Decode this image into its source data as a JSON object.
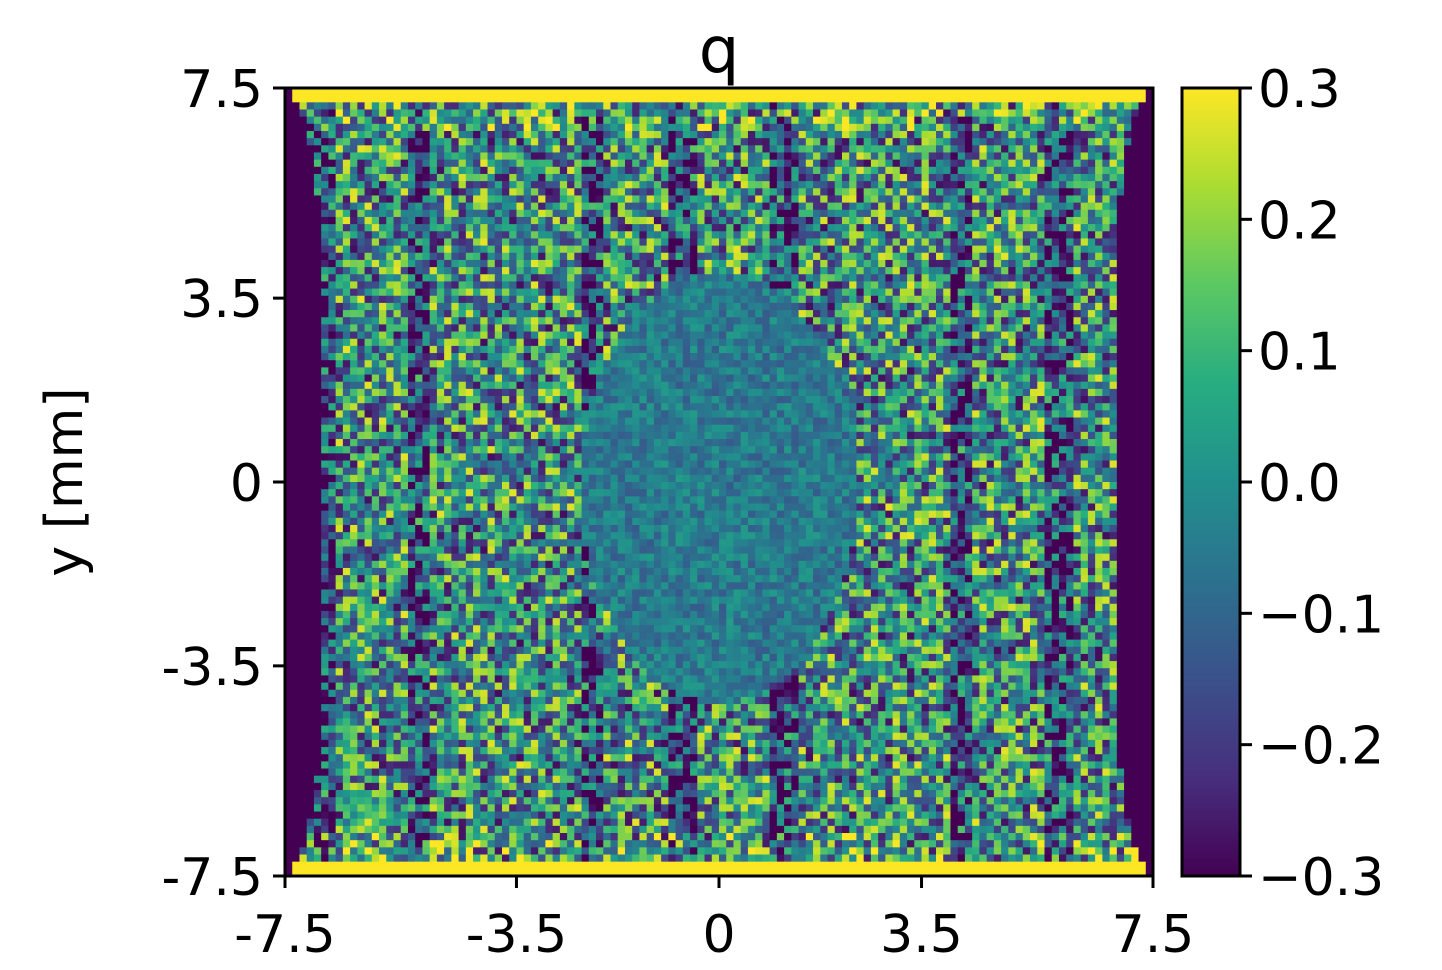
{
  "chart_data": {
    "type": "heatmap",
    "title": "q",
    "xlabel": "",
    "ylabel": "y [mm]",
    "xlim": [
      -7.5,
      7.5
    ],
    "ylim": [
      -7.5,
      7.5
    ],
    "x_ticks": [
      -7.5,
      -3.5,
      0,
      3.5,
      7.5
    ],
    "x_tick_labels": [
      "-7.5",
      "-3.5",
      "0",
      "3.5",
      "7.5"
    ],
    "y_ticks": [
      -7.5,
      -3.5,
      0,
      3.5,
      7.5
    ],
    "y_tick_labels": [
      "-7.5",
      "-3.5",
      "0",
      "3.5",
      "7.5"
    ],
    "colorbar": {
      "range": [
        -0.3,
        0.3
      ],
      "ticks": [
        0.3,
        0.2,
        0.1,
        0.0,
        -0.1,
        -0.2,
        -0.3
      ],
      "tick_labels": [
        "0.3",
        "0.2",
        "0.1",
        "0.0",
        "−0.1",
        "−0.2",
        "−0.3"
      ],
      "colormap": "viridis"
    },
    "features": {
      "left_and_right_edges_value": -0.3,
      "top_and_bottom_edges_value": 0.3,
      "central_ellipse": {
        "x_range": [
          -2.4,
          2.4
        ],
        "y_range": [
          -4.2,
          4.0
        ],
        "approx_value": -0.05
      },
      "background_noise_range": [
        -0.3,
        0.3
      ],
      "dark_vertical_streaks_x": [
        -6.9,
        -5.2,
        -2.2,
        -0.6,
        1.1,
        4.2,
        5.9
      ]
    },
    "grid": false,
    "colors": {
      "viridis_low": "#440154",
      "viridis_mid": "#21918c",
      "viridis_high": "#fde725"
    }
  }
}
